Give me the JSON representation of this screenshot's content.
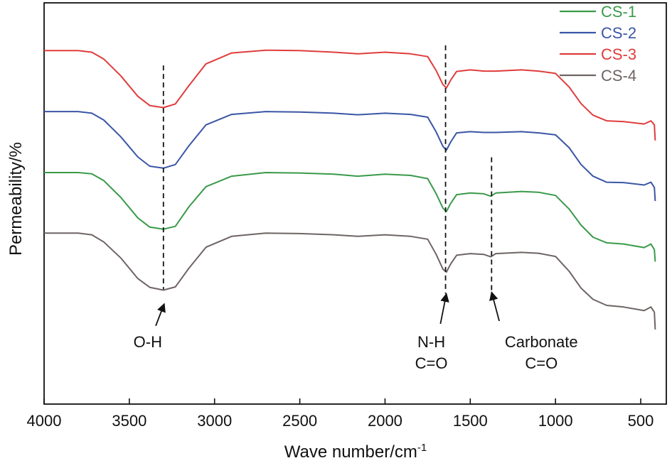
{
  "chart_data": {
    "type": "line",
    "title": "",
    "xlabel": "Wave number/cm",
    "xlabel_superscript": "-1",
    "ylabel": "Permeability/%",
    "xlim": [
      4000,
      350
    ],
    "ylim": [
      0,
      100
    ],
    "x_reversed": true,
    "y_ticks_shown": false,
    "grid": false,
    "legend_position": "top-right",
    "x_ticks": [
      {
        "value": 4000,
        "label": "4000"
      },
      {
        "value": 3500,
        "label": "3500"
      },
      {
        "value": 3000,
        "label": "3000"
      },
      {
        "value": 2500,
        "label": "2500"
      },
      {
        "value": 2000,
        "label": "2000"
      },
      {
        "value": 1500,
        "label": "1500"
      },
      {
        "value": 1000,
        "label": "1000"
      },
      {
        "value": 500,
        "label": "500"
      }
    ],
    "series": [
      {
        "name": "CS-1",
        "color": "#3a9a4a",
        "points": [
          [
            4000,
            57.7
          ],
          [
            3800,
            57.7
          ],
          [
            3720,
            57.4
          ],
          [
            3650,
            55.7
          ],
          [
            3550,
            51.5
          ],
          [
            3450,
            46.4
          ],
          [
            3380,
            44.1
          ],
          [
            3300,
            43.6
          ],
          [
            3230,
            44.3
          ],
          [
            3150,
            49.2
          ],
          [
            3050,
            54.2
          ],
          [
            2900,
            56.8
          ],
          [
            2700,
            57.7
          ],
          [
            2500,
            57.6
          ],
          [
            2300,
            57.3
          ],
          [
            2160,
            56.8
          ],
          [
            2000,
            57.3
          ],
          [
            1850,
            57.0
          ],
          [
            1750,
            56.2
          ],
          [
            1700,
            52.4
          ],
          [
            1660,
            48.8
          ],
          [
            1640,
            48.0
          ],
          [
            1615,
            50.0
          ],
          [
            1580,
            52.2
          ],
          [
            1500,
            52.6
          ],
          [
            1420,
            52.4
          ],
          [
            1380,
            51.8
          ],
          [
            1350,
            52.6
          ],
          [
            1200,
            53.0
          ],
          [
            1100,
            52.8
          ],
          [
            1000,
            52.0
          ],
          [
            920,
            48.6
          ],
          [
            850,
            44.6
          ],
          [
            780,
            41.6
          ],
          [
            700,
            40.2
          ],
          [
            600,
            39.9
          ],
          [
            480,
            39.0
          ],
          [
            440,
            39.9
          ],
          [
            420,
            38.5
          ],
          [
            415,
            35.5
          ]
        ]
      },
      {
        "name": "CS-2",
        "color": "#3a56a5",
        "points": [
          [
            4000,
            72.9
          ],
          [
            3800,
            72.9
          ],
          [
            3720,
            72.5
          ],
          [
            3650,
            70.8
          ],
          [
            3550,
            66.6
          ],
          [
            3450,
            61.6
          ],
          [
            3380,
            59.3
          ],
          [
            3300,
            58.8
          ],
          [
            3230,
            59.7
          ],
          [
            3150,
            64.4
          ],
          [
            3050,
            69.6
          ],
          [
            2900,
            72.2
          ],
          [
            2700,
            72.9
          ],
          [
            2500,
            72.8
          ],
          [
            2300,
            72.5
          ],
          [
            2160,
            72.1
          ],
          [
            2000,
            72.5
          ],
          [
            1850,
            72.2
          ],
          [
            1750,
            71.5
          ],
          [
            1700,
            67.8
          ],
          [
            1660,
            64.2
          ],
          [
            1640,
            63.3
          ],
          [
            1615,
            65.3
          ],
          [
            1580,
            67.6
          ],
          [
            1500,
            67.9
          ],
          [
            1420,
            67.7
          ],
          [
            1350,
            67.7
          ],
          [
            1200,
            67.9
          ],
          [
            1100,
            67.6
          ],
          [
            1000,
            67.1
          ],
          [
            920,
            63.9
          ],
          [
            850,
            59.7
          ],
          [
            780,
            56.8
          ],
          [
            700,
            55.3
          ],
          [
            600,
            55.2
          ],
          [
            480,
            54.6
          ],
          [
            440,
            55.3
          ],
          [
            420,
            54.0
          ],
          [
            415,
            50.6
          ]
        ]
      },
      {
        "name": "CS-3",
        "color": "#e03c3c",
        "points": [
          [
            4000,
            88.1
          ],
          [
            3800,
            88.1
          ],
          [
            3720,
            87.7
          ],
          [
            3650,
            86.0
          ],
          [
            3550,
            81.8
          ],
          [
            3450,
            76.7
          ],
          [
            3380,
            74.4
          ],
          [
            3300,
            73.9
          ],
          [
            3230,
            74.8
          ],
          [
            3150,
            79.4
          ],
          [
            3050,
            84.8
          ],
          [
            2900,
            87.5
          ],
          [
            2700,
            88.2
          ],
          [
            2500,
            88.1
          ],
          [
            2300,
            87.7
          ],
          [
            2160,
            87.3
          ],
          [
            2000,
            87.7
          ],
          [
            1850,
            87.3
          ],
          [
            1750,
            86.6
          ],
          [
            1700,
            83.1
          ],
          [
            1660,
            79.6
          ],
          [
            1640,
            78.8
          ],
          [
            1615,
            80.7
          ],
          [
            1580,
            82.9
          ],
          [
            1500,
            83.3
          ],
          [
            1420,
            83.0
          ],
          [
            1350,
            83.0
          ],
          [
            1200,
            83.3
          ],
          [
            1100,
            83.0
          ],
          [
            1000,
            82.4
          ],
          [
            920,
            79.0
          ],
          [
            850,
            74.9
          ],
          [
            780,
            72.0
          ],
          [
            700,
            70.6
          ],
          [
            600,
            70.4
          ],
          [
            480,
            69.8
          ],
          [
            440,
            70.6
          ],
          [
            420,
            69.6
          ],
          [
            415,
            65.7
          ]
        ]
      },
      {
        "name": "CS-4",
        "color": "#6f6464",
        "points": [
          [
            4000,
            42.6
          ],
          [
            3800,
            42.6
          ],
          [
            3720,
            42.2
          ],
          [
            3650,
            40.4
          ],
          [
            3550,
            36.4
          ],
          [
            3450,
            31.3
          ],
          [
            3380,
            29.1
          ],
          [
            3300,
            28.4
          ],
          [
            3230,
            29.2
          ],
          [
            3150,
            33.9
          ],
          [
            3050,
            39.1
          ],
          [
            2900,
            41.8
          ],
          [
            2700,
            42.6
          ],
          [
            2500,
            42.5
          ],
          [
            2300,
            42.2
          ],
          [
            2160,
            41.8
          ],
          [
            2000,
            42.2
          ],
          [
            1850,
            41.8
          ],
          [
            1750,
            41.1
          ],
          [
            1700,
            37.3
          ],
          [
            1660,
            33.6
          ],
          [
            1640,
            32.9
          ],
          [
            1615,
            34.9
          ],
          [
            1580,
            37.1
          ],
          [
            1500,
            37.5
          ],
          [
            1420,
            37.3
          ],
          [
            1380,
            36.7
          ],
          [
            1350,
            37.5
          ],
          [
            1200,
            37.8
          ],
          [
            1100,
            37.6
          ],
          [
            1000,
            36.8
          ],
          [
            920,
            33.1
          ],
          [
            850,
            28.9
          ],
          [
            780,
            26.1
          ],
          [
            700,
            24.6
          ],
          [
            600,
            24.2
          ],
          [
            480,
            23.3
          ],
          [
            440,
            24.2
          ],
          [
            420,
            22.9
          ],
          [
            415,
            18.6
          ]
        ]
      }
    ],
    "reference_lines": [
      {
        "name": "oh-line",
        "x": 3300,
        "y_from": 28.6,
        "y_to": 84.4
      },
      {
        "name": "nh-line",
        "x": 1645,
        "y_from": 27.5,
        "y_to": 89.4
      },
      {
        "name": "carbonate-line",
        "x": 1375,
        "y_from": 27.7,
        "y_to": 61.5
      }
    ],
    "annotations": [
      {
        "name": "oh",
        "lines": [
          "O-H"
        ],
        "x": 3300,
        "arrow_from": [
          3345,
          19.5
        ],
        "arrow_to": [
          3295,
          25.0
        ]
      },
      {
        "name": "nh",
        "lines": [
          "N-H",
          "C=O"
        ],
        "x": 1645,
        "arrow_from": [
          1675,
          20.0
        ],
        "arrow_to": [
          1640,
          27.5
        ]
      },
      {
        "name": "carbonate",
        "lines": [
          "Carbonate",
          "C=O"
        ],
        "x": 1375,
        "arrow_from": [
          1330,
          20.7
        ],
        "arrow_to": [
          1375,
          27.9
        ]
      }
    ]
  }
}
